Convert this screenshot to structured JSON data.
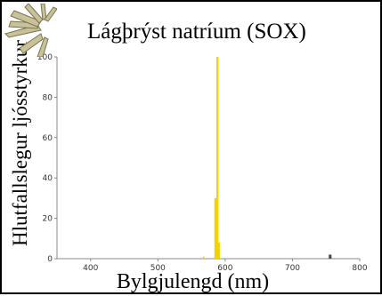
{
  "chart_data": {
    "type": "bar",
    "title": "Lágþrýst natríum (SOX)",
    "xlabel": "Bylgjulengd (nm)",
    "ylabel": "Hlutfallslegur ljósstyrkur",
    "xlim": [
      350,
      800
    ],
    "ylim": [
      0,
      100
    ],
    "xticks": [
      400,
      500,
      600,
      700,
      800
    ],
    "yticks": [
      0,
      20,
      40,
      60,
      80,
      100
    ],
    "bars": [
      {
        "x": 568,
        "value": 1
      },
      {
        "x": 585,
        "value": 30
      },
      {
        "x": 586,
        "value": 30
      },
      {
        "x": 587,
        "value": 30
      },
      {
        "x": 588,
        "value": 100
      },
      {
        "x": 589,
        "value": 100
      },
      {
        "x": 590,
        "value": 8
      },
      {
        "x": 591,
        "value": 8
      },
      {
        "x": 755,
        "value": 2
      },
      {
        "x": 757,
        "value": 2
      }
    ],
    "grid": false
  },
  "colors": {
    "bar": "#f2d200",
    "nir_bar": "#444444",
    "axis": "#888888"
  }
}
